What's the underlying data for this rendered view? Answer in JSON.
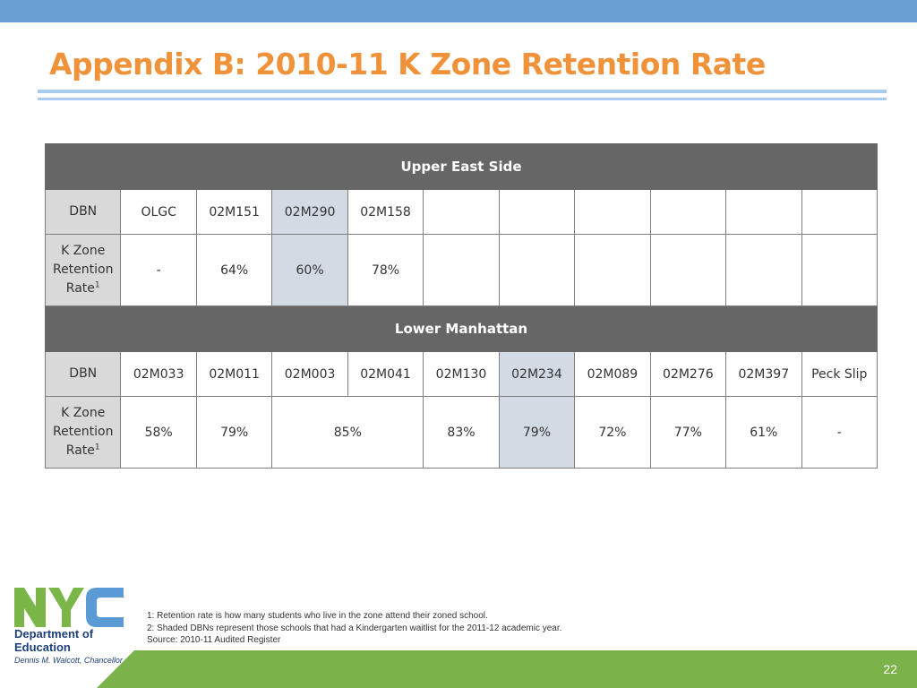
{
  "title": "Appendix B: 2010-11 K Zone Retention Rate",
  "table": {
    "sections": [
      {
        "name": "Upper East Side",
        "dbn_label": "DBN",
        "rate_label": "K Zone Retention Rate",
        "rate_sup": "1",
        "dbns": [
          "OLGC",
          "02M151",
          "02M290",
          "02M158",
          "",
          "",
          "",
          "",
          "",
          ""
        ],
        "rates": [
          "-",
          "64%",
          "60%",
          "78%",
          "",
          "",
          "",
          "",
          "",
          ""
        ],
        "shaded_dbns": [
          "02M290"
        ]
      },
      {
        "name": "Lower Manhattan",
        "dbn_label": "DBN",
        "rate_label": "K Zone Retention Rate",
        "rate_sup": "1",
        "dbns": [
          "02M033",
          "02M011",
          "02M003",
          "02M041",
          "02M130",
          "02M234",
          "02M089",
          "02M276",
          "02M397",
          "Peck Slip"
        ],
        "rates": [
          "58%",
          "79%",
          "85%",
          "83%",
          "79%",
          "72%",
          "77%",
          "61%",
          "-"
        ],
        "shaded_dbns": [
          "02M234"
        ],
        "merged_rate_dbns": [
          "02M003",
          "02M041"
        ]
      }
    ]
  },
  "footnotes": [
    "1: Retention rate is how many students who live in the zone attend their zoned school.",
    "2: Shaded DBNs represent those schools that had a Kindergarten waitlist for the 2011-12 academic year.",
    "Source: 2010-11 Audited Register"
  ],
  "logo": {
    "wordmark": "NYC",
    "dept_line1": "Department of",
    "dept_line2": "Education",
    "chancellor": "Dennis M. Walcott, Chancellor"
  },
  "page_number": "22",
  "colors": {
    "top_bar": "#6a9fd3",
    "title": "#f0923a",
    "section_header": "#666666",
    "shaded_cell": "#d2dae3",
    "row_header": "#d9d9d9",
    "footer_green": "#7cb24a",
    "logo_green": "#7ab648",
    "logo_blue": "#5b9bd5"
  }
}
